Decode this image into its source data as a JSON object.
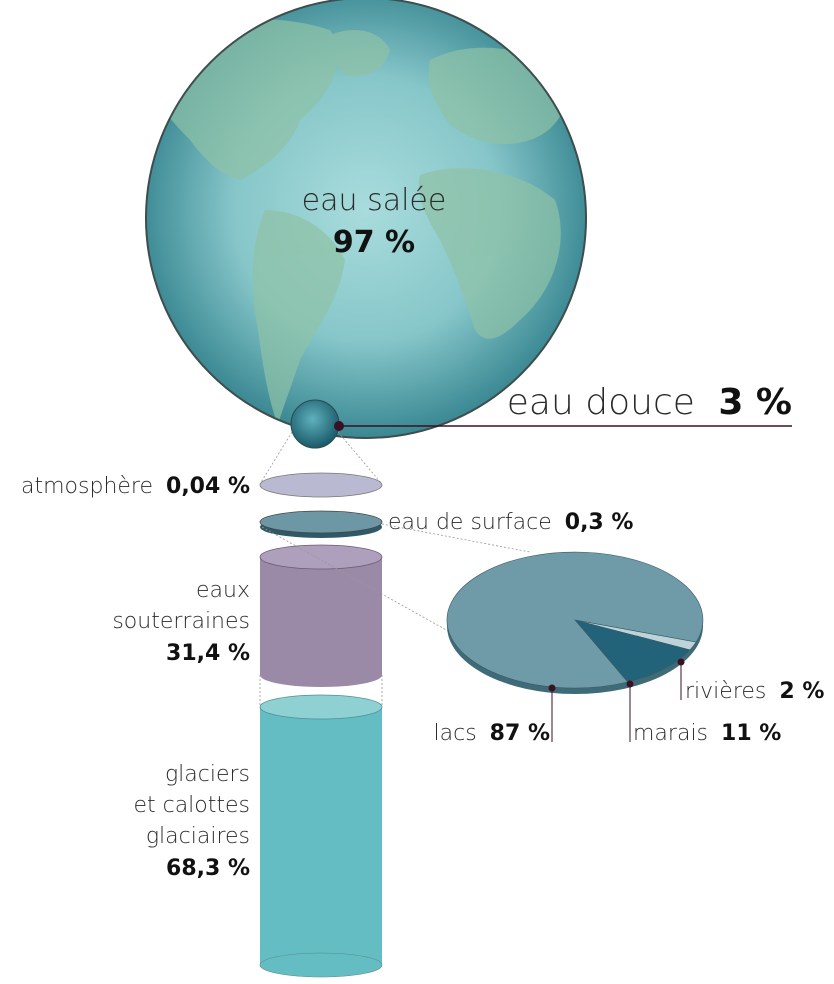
{
  "chart_data": {
    "type": "pie",
    "title": "",
    "globe": {
      "label": "eau salée",
      "value_text": "97 %",
      "value": 97
    },
    "fresh": {
      "label": "eau douce",
      "value_text": "3 %",
      "value": 3
    },
    "fresh_breakdown": [
      {
        "label": "atmosphère",
        "value_text": "0,04 %",
        "value": 0.04,
        "color": "#b9b9d2"
      },
      {
        "label": "eau de surface",
        "value_text": "0,3 %",
        "value": 0.3,
        "color": "#6e97a5"
      },
      {
        "label": "eaux souterraines",
        "label_lines": [
          "eaux",
          "souterraines"
        ],
        "value_text": "31,4 %",
        "value": 31.4,
        "color": "#9a8aa8"
      },
      {
        "label": "glaciers et calottes glaciaires",
        "label_lines": [
          "glaciers",
          "et calottes",
          "glaciaires"
        ],
        "value_text": "68,3 %",
        "value": 68.3,
        "color": "#63bdc2"
      }
    ],
    "surface_breakdown": [
      {
        "label": "lacs",
        "value_text": "87 %",
        "value": 87,
        "color": "#6f9aa8"
      },
      {
        "label": "marais",
        "value_text": "11 %",
        "value": 11,
        "color": "#23637a"
      },
      {
        "label": "rivières",
        "value_text": "2 %",
        "value": 2,
        "color": "#bcd3d9"
      }
    ],
    "colors": {
      "ocean": "#7cc3c8",
      "land": "#8cbfa4",
      "accent_dot": "#3a1023"
    }
  }
}
